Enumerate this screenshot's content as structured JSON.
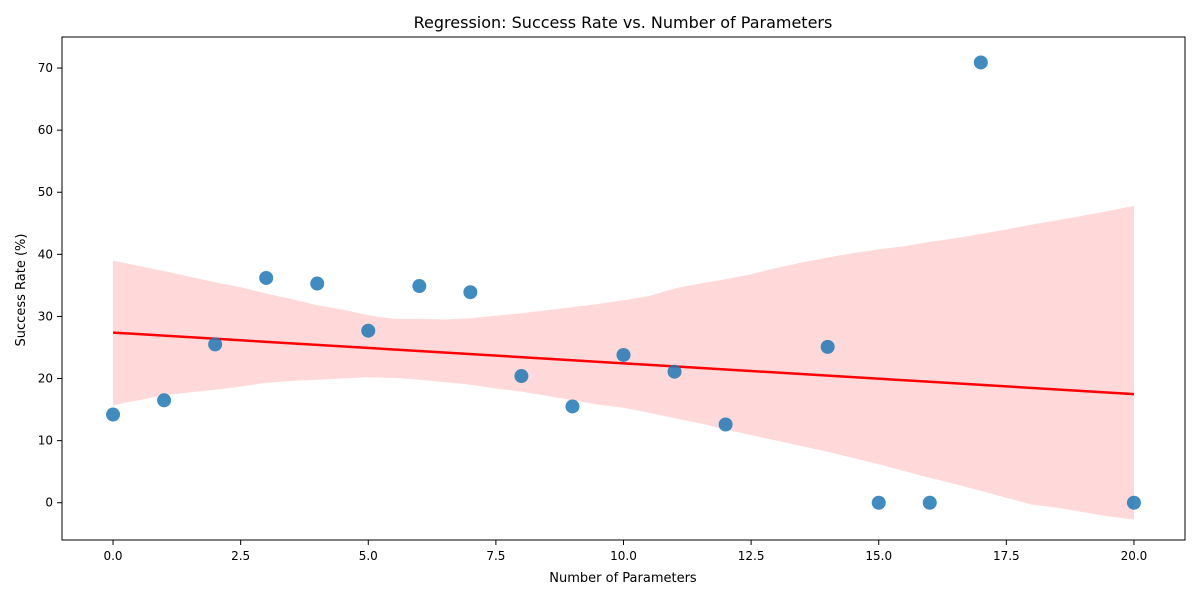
{
  "chart_data": {
    "type": "scatter",
    "title": "Regression: Success Rate vs. Number of Parameters",
    "xlabel": "Number of Parameters",
    "ylabel": "Success Rate (%)",
    "xlim": [
      -1,
      21
    ],
    "ylim": [
      -6,
      75
    ],
    "xticks": [
      0.0,
      2.5,
      5.0,
      7.5,
      10.0,
      12.5,
      15.0,
      17.5,
      20.0
    ],
    "xtick_labels": [
      "0.0",
      "2.5",
      "5.0",
      "7.5",
      "10.0",
      "12.5",
      "15.0",
      "17.5",
      "20.0"
    ],
    "yticks": [
      0,
      10,
      20,
      30,
      40,
      50,
      60,
      70
    ],
    "ytick_labels": [
      "0",
      "10",
      "20",
      "30",
      "40",
      "50",
      "60",
      "70"
    ],
    "grid": false,
    "colors": {
      "points": "#1f77b4",
      "regression_line": "#ff0000",
      "confidence_band": "#ffb3b3"
    },
    "points": [
      {
        "x": 0,
        "y": 14.2
      },
      {
        "x": 1,
        "y": 16.5
      },
      {
        "x": 2,
        "y": 25.5
      },
      {
        "x": 3,
        "y": 36.2
      },
      {
        "x": 4,
        "y": 35.3
      },
      {
        "x": 5,
        "y": 27.7
      },
      {
        "x": 6,
        "y": 34.9
      },
      {
        "x": 7,
        "y": 33.9
      },
      {
        "x": 8,
        "y": 20.4
      },
      {
        "x": 9,
        "y": 15.5
      },
      {
        "x": 10,
        "y": 23.8
      },
      {
        "x": 11,
        "y": 21.1
      },
      {
        "x": 12,
        "y": 12.6
      },
      {
        "x": 14,
        "y": 25.1
      },
      {
        "x": 15,
        "y": 0.0
      },
      {
        "x": 16,
        "y": 0.0
      },
      {
        "x": 17,
        "y": 70.9
      },
      {
        "x": 20,
        "y": 0.0
      }
    ],
    "regression_line": {
      "x": [
        0,
        20
      ],
      "y": [
        27.4,
        17.5
      ]
    },
    "confidence_band": {
      "x": [
        0,
        1,
        2,
        2.5,
        3,
        3.5,
        4,
        4.5,
        5,
        5.5,
        6,
        6.5,
        7,
        7.5,
        8,
        8.5,
        9,
        9.5,
        10,
        10.5,
        11,
        11.5,
        12,
        12.5,
        13,
        13.5,
        14,
        14.5,
        15,
        15.5,
        16,
        16.5,
        17,
        17.5,
        18,
        18.5,
        19,
        19.5,
        20
      ],
      "upper": [
        39.0,
        37.3,
        35.5,
        34.7,
        33.7,
        32.8,
        31.8,
        31.1,
        30.2,
        29.6,
        29.6,
        29.5,
        29.7,
        30.1,
        30.5,
        31.0,
        31.5,
        32.0,
        32.6,
        33.3,
        34.5,
        35.3,
        36.0,
        36.8,
        37.8,
        38.7,
        39.5,
        40.2,
        40.8,
        41.3,
        42.0,
        42.6,
        43.3,
        44.0,
        44.8,
        45.5,
        46.2,
        47.0,
        47.8
      ],
      "lower": [
        15.7,
        17.3,
        18.2,
        18.7,
        19.3,
        19.6,
        19.8,
        20.0,
        20.2,
        20.1,
        19.8,
        19.4,
        19.0,
        18.4,
        17.9,
        17.2,
        16.5,
        15.8,
        15.3,
        14.5,
        13.6,
        12.8,
        11.8,
        10.9,
        10.0,
        9.1,
        8.2,
        7.2,
        6.2,
        5.1,
        4.0,
        3.0,
        1.9,
        0.8,
        -0.3,
        -0.8,
        -1.5,
        -2.2,
        -2.7
      ]
    }
  }
}
